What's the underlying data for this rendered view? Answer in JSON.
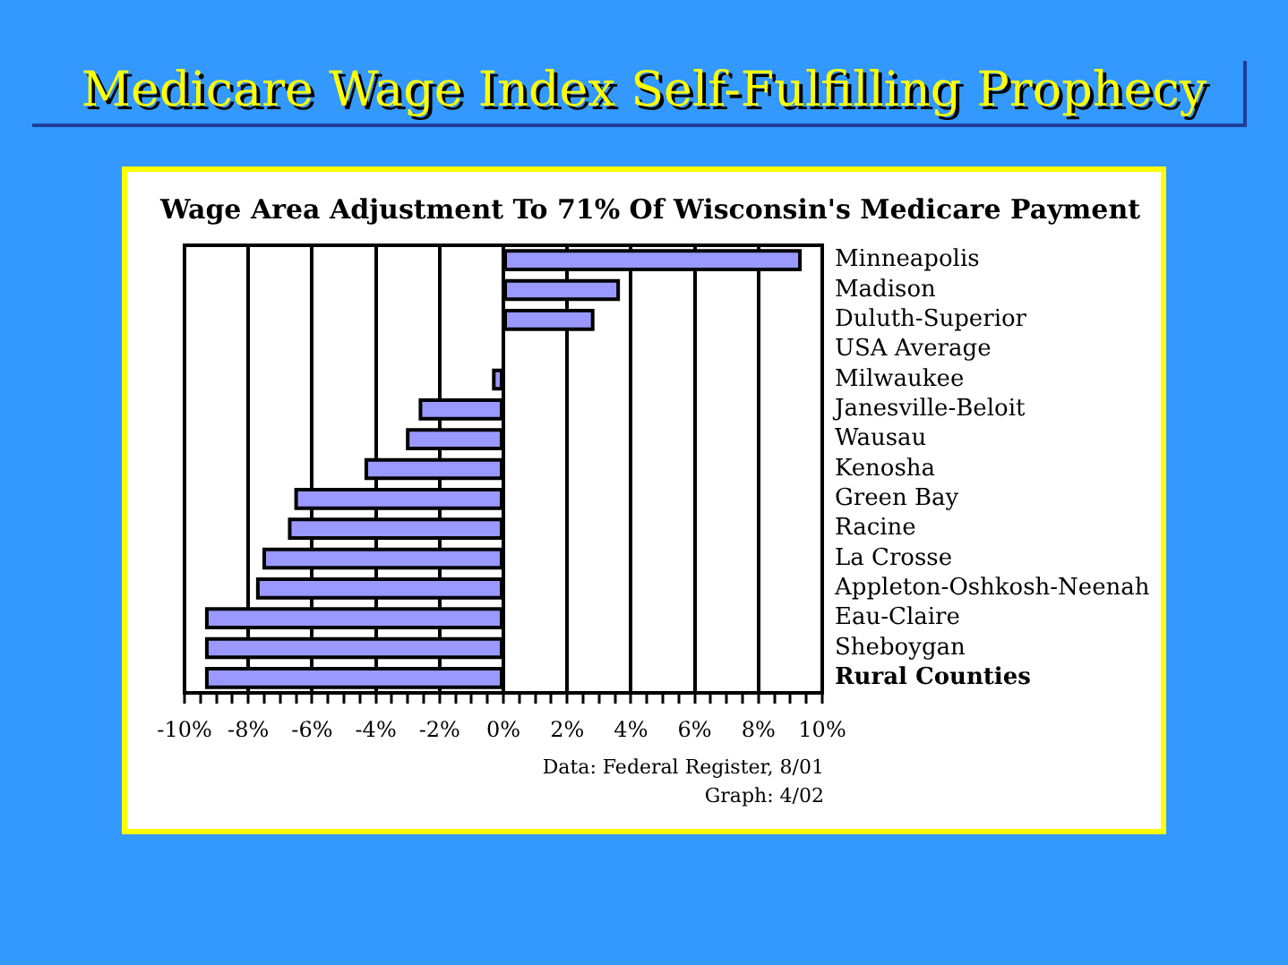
{
  "chart_data": {
    "type": "bar",
    "orientation": "horizontal",
    "title": "Medicare Wage Index Self-Fulfilling Prophecy",
    "subtitle": "Wage Area Adjustment To 71% Of Wisconsin's Medicare Payment",
    "categories": [
      "Minneapolis",
      "Madison",
      "Duluth-Superior",
      "USA Average",
      "Milwaukee",
      "Janesville-Beloit",
      "Wausau",
      "Kenosha",
      "Green Bay",
      "Racine",
      "La Crosse",
      "Appleton-Oshkosh-Neenah",
      "Eau-Claire",
      "Sheboygan",
      "Rural Counties"
    ],
    "values": [
      9.3,
      3.6,
      2.8,
      0,
      -0.3,
      -2.6,
      -3.0,
      -4.3,
      -6.5,
      -6.7,
      -7.5,
      -7.7,
      -9.3,
      -9.3,
      -9.3
    ],
    "color": "#9999ff",
    "xlim": [
      -10,
      10
    ],
    "xticks": [
      {
        "value": -10,
        "label": "-10%"
      },
      {
        "value": -9.5,
        "label": null
      },
      {
        "value": -9,
        "label": null
      },
      {
        "value": -8.5,
        "label": null
      },
      {
        "value": -8,
        "label": "-8%"
      },
      {
        "value": -7.5,
        "label": null
      },
      {
        "value": -7,
        "label": null
      },
      {
        "value": -6.5,
        "label": null
      },
      {
        "value": -6,
        "label": "-6%"
      },
      {
        "value": -5.5,
        "label": null
      },
      {
        "value": -5,
        "label": null
      },
      {
        "value": -4.5,
        "label": null
      },
      {
        "value": -4,
        "label": "-4%"
      },
      {
        "value": -3.5,
        "label": null
      },
      {
        "value": -3,
        "label": null
      },
      {
        "value": -2.5,
        "label": null
      },
      {
        "value": -2,
        "label": "-2%"
      },
      {
        "value": -1.5,
        "label": null
      },
      {
        "value": -1,
        "label": null
      },
      {
        "value": -0.5,
        "label": null
      },
      {
        "value": 0,
        "label": "0%"
      },
      {
        "value": 0.5,
        "label": null
      },
      {
        "value": 1,
        "label": null
      },
      {
        "value": 1.5,
        "label": null
      },
      {
        "value": 2,
        "label": "2%"
      },
      {
        "value": 2.5,
        "label": null
      },
      {
        "value": 3,
        "label": null
      },
      {
        "value": 3.5,
        "label": null
      },
      {
        "value": 4,
        "label": "4%"
      },
      {
        "value": 4.5,
        "label": null
      },
      {
        "value": 5,
        "label": null
      },
      {
        "value": 5.5,
        "label": null
      },
      {
        "value": 6,
        "label": "6%"
      },
      {
        "value": 6.5,
        "label": null
      },
      {
        "value": 7,
        "label": null
      },
      {
        "value": 7.5,
        "label": null
      },
      {
        "value": 8,
        "label": "8%"
      },
      {
        "value": 8.5,
        "label": null
      },
      {
        "value": 9,
        "label": null
      },
      {
        "value": 9.5,
        "label": null
      },
      {
        "value": 10,
        "label": "10%"
      }
    ],
    "grid": "x",
    "annotations": [
      "Data: Federal Register, 8/01",
      "Graph: 4/02"
    ]
  }
}
